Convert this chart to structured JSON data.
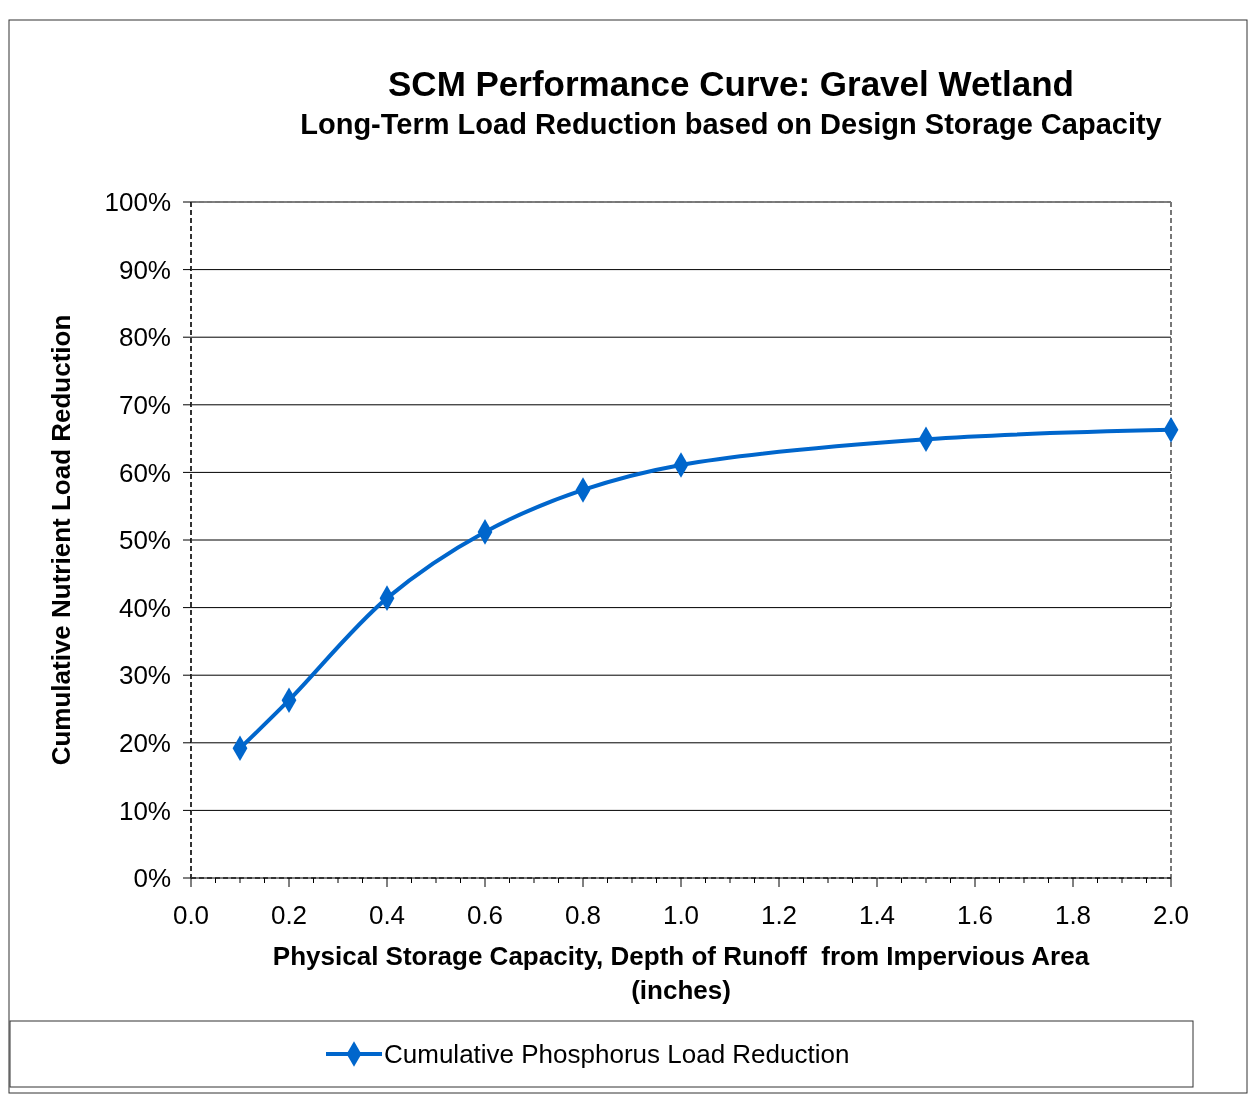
{
  "chart_data": {
    "type": "line",
    "title": "SCM Performance Curve: Gravel Wetland",
    "subtitle": "Long-Term Load Reduction based on Design Storage Capacity",
    "xlabel": "Physical Storage Capacity, Depth of Runoff  from Impervious Area (inches)",
    "ylabel": "Cumulative Nutrient Load Reduction",
    "x": [
      0.1,
      0.2,
      0.4,
      0.6,
      0.8,
      1.0,
      1.5,
      2.0
    ],
    "series": [
      {
        "name": "Cumulative Phosphorus Load Reduction",
        "color": "#0066cc",
        "values": [
          19.2,
          26.3,
          41.4,
          51.2,
          57.4,
          61.1,
          64.9,
          66.3
        ]
      }
    ],
    "xlim": [
      0,
      2
    ],
    "xticks": [
      {
        "value": 0,
        "label": "0.0"
      },
      {
        "value": 0.2,
        "label": "0.2"
      },
      {
        "value": 0.4,
        "label": "0.4"
      },
      {
        "value": 0.6,
        "label": "0.6"
      },
      {
        "value": 0.8,
        "label": "0.8"
      },
      {
        "value": 1,
        "label": "1.0"
      },
      {
        "value": 1.2,
        "label": "1.2"
      },
      {
        "value": 1.4,
        "label": "1.4"
      },
      {
        "value": 1.6,
        "label": "1.6"
      },
      {
        "value": 1.8,
        "label": "1.8"
      },
      {
        "value": 2,
        "label": "2.0"
      }
    ],
    "ylim": [
      0,
      100
    ],
    "yticks": [
      {
        "value": 0,
        "label": "0%"
      },
      {
        "value": 10,
        "label": "10%"
      },
      {
        "value": 20,
        "label": "20%"
      },
      {
        "value": 30,
        "label": "30%"
      },
      {
        "value": 40,
        "label": "40%"
      },
      {
        "value": 50,
        "label": "50%"
      },
      {
        "value": 60,
        "label": "60%"
      },
      {
        "value": 70,
        "label": "70%"
      },
      {
        "value": 80,
        "label": "80%"
      },
      {
        "value": 90,
        "label": "90%"
      },
      {
        "value": 100,
        "label": "100%"
      }
    ],
    "grid": "y",
    "legend": "bottom",
    "marker": "diamond",
    "line_style": "solid"
  }
}
